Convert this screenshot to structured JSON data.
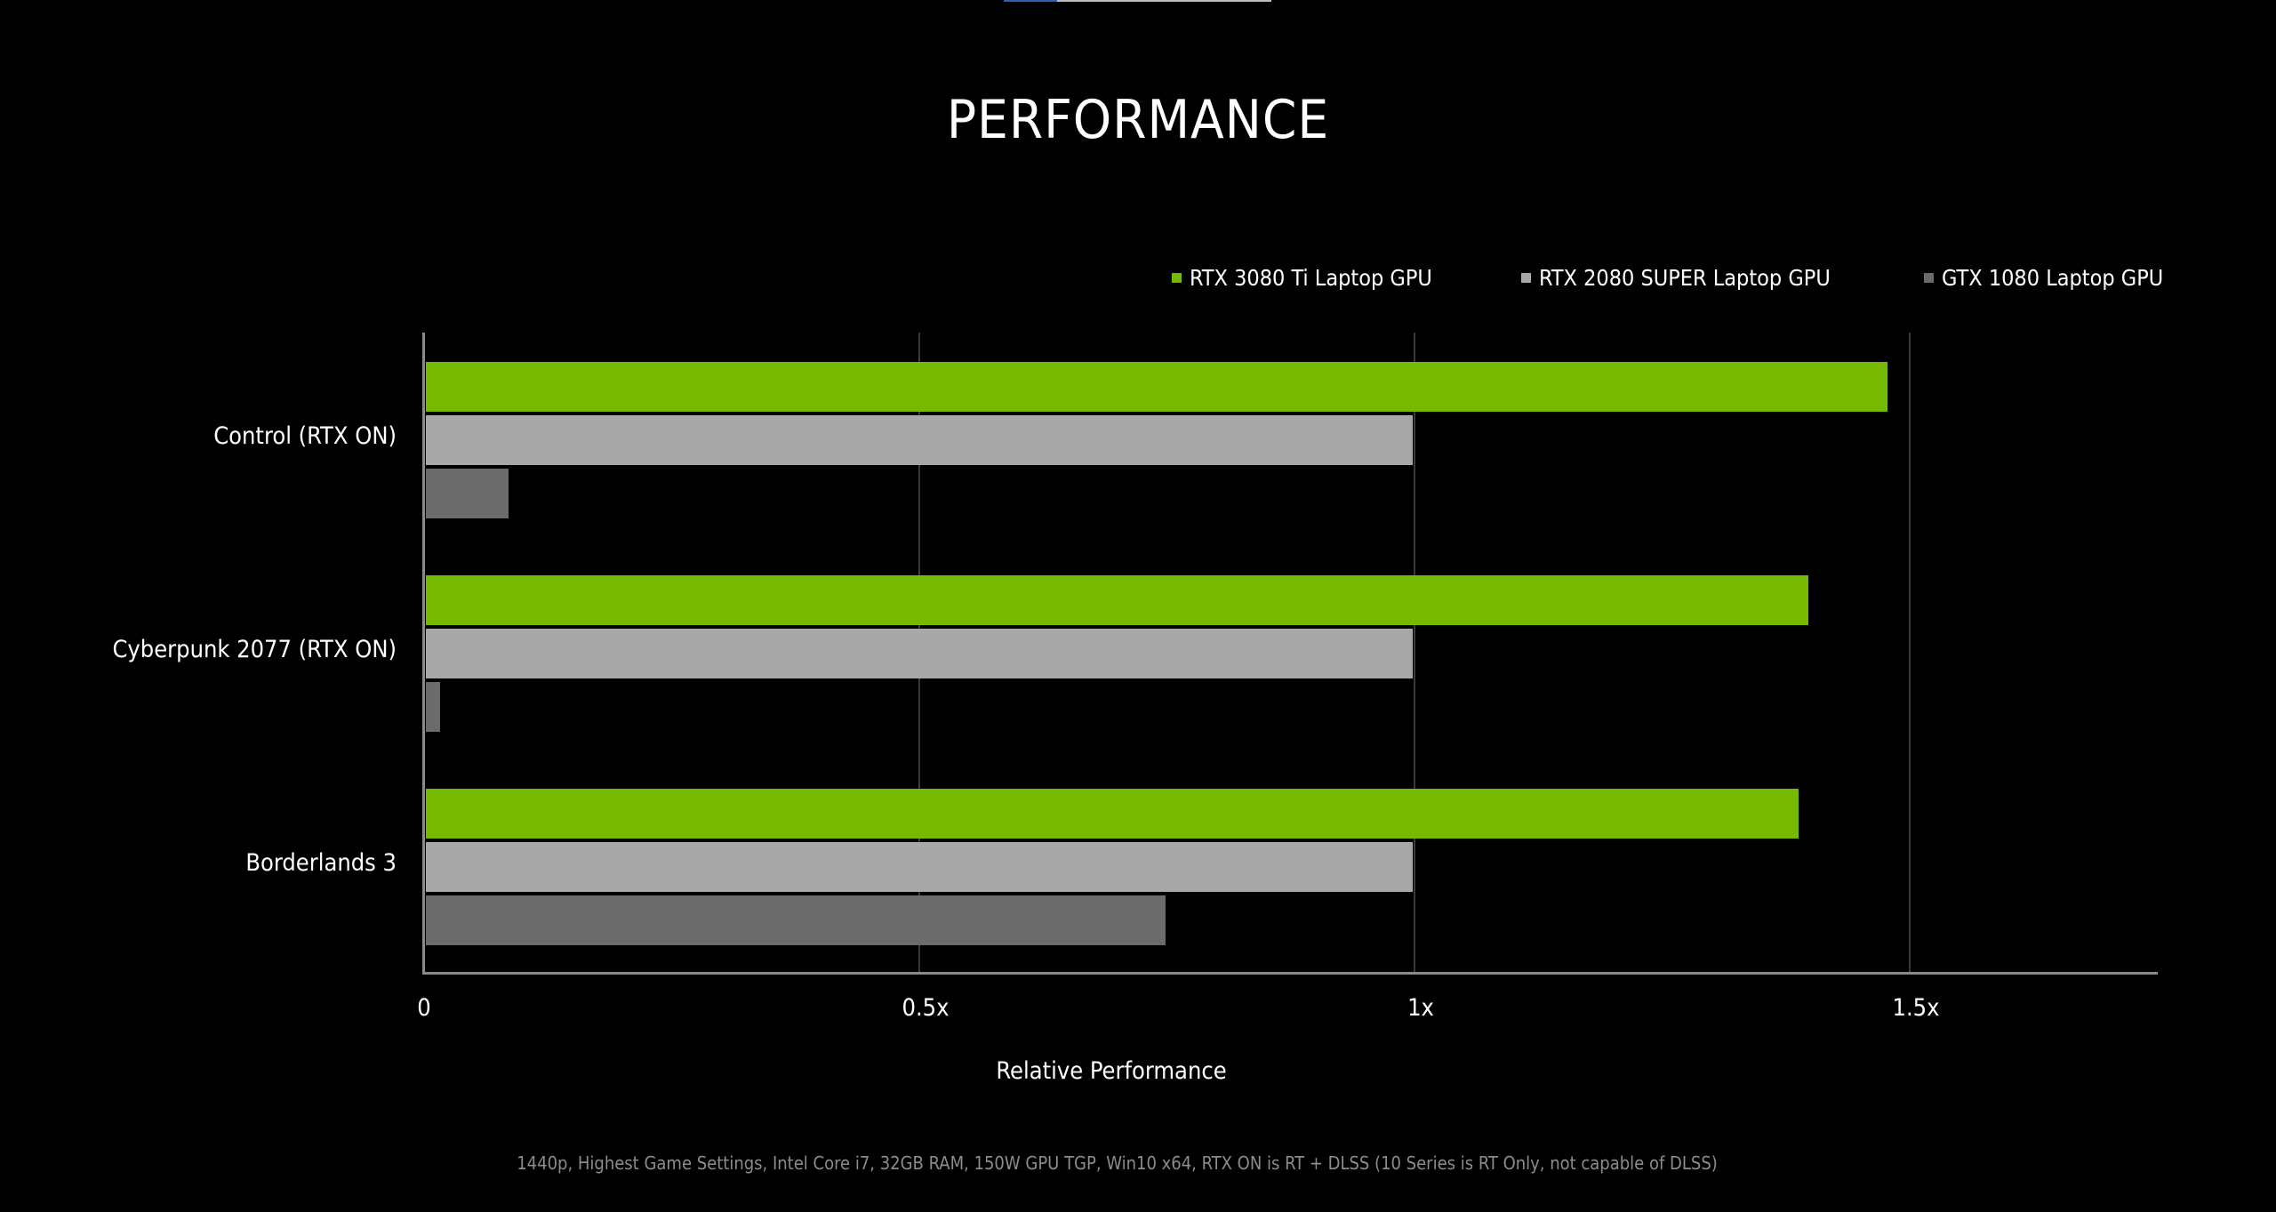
{
  "topbar": {
    "active_color": "#2a62b4",
    "track_color": "#bdbdbd"
  },
  "chart_data": {
    "type": "bar",
    "orientation": "horizontal",
    "title": "PERFORMANCE",
    "categories": [
      "Control (RTX ON)",
      "Cyberpunk 2077 (RTX ON)",
      "Borderlands 3"
    ],
    "series": [
      {
        "name": "RTX 3080 Ti Laptop GPU",
        "color": "#76b900",
        "values": [
          1.48,
          1.4,
          1.39
        ]
      },
      {
        "name": "RTX 2080 SUPER Laptop GPU",
        "color": "#a8a8a8",
        "values": [
          1.0,
          1.0,
          1.0
        ]
      },
      {
        "name": "GTX 1080 Laptop GPU",
        "color": "#6b6b6b",
        "values": [
          0.085,
          0.016,
          0.75
        ]
      }
    ],
    "xlabel": "Relative Performance",
    "ylabel": "",
    "xticks": [
      "0",
      "0.5x",
      "1x",
      "1.5x"
    ],
    "xtick_values": [
      0,
      0.5,
      1,
      1.5
    ],
    "xlim": [
      0,
      1.75
    ],
    "grid": "vertical",
    "legend_position": "top-right",
    "footnote": "1440p, Highest Game Settings, Intel Core i7, 32GB RAM, 150W GPU TGP, Win10 x64, RTX ON is RT + DLSS (10 Series is RT Only, not capable of DLSS)"
  }
}
